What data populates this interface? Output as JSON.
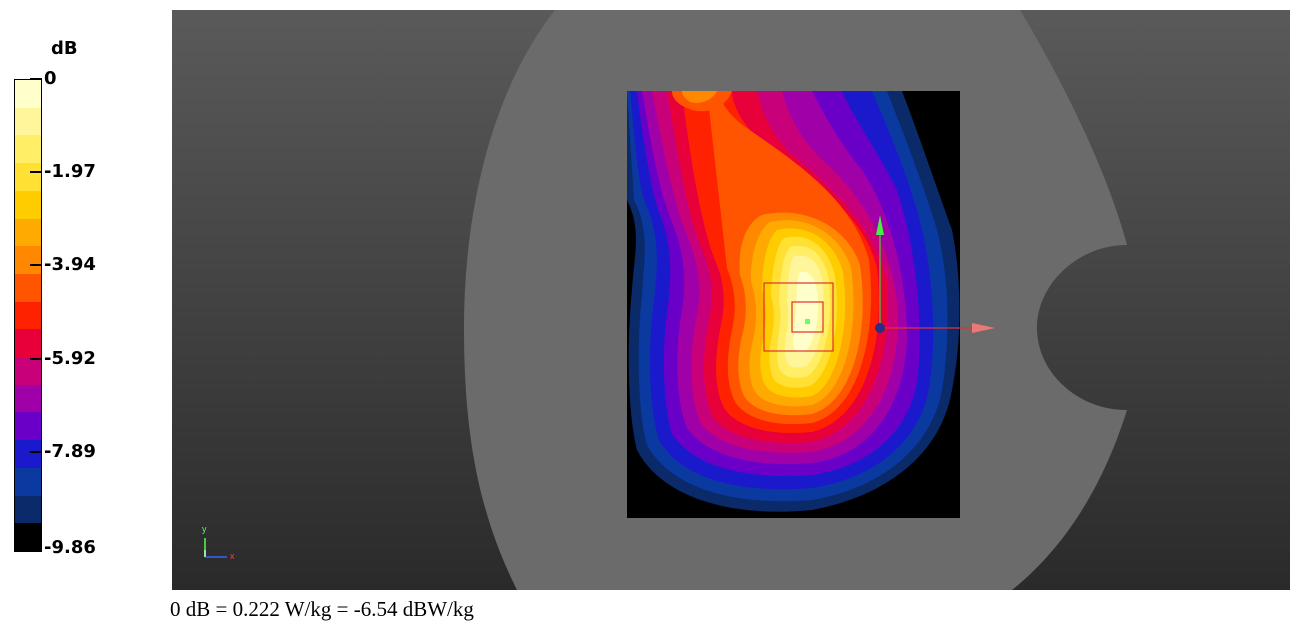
{
  "legend": {
    "unit": "dB",
    "ticks": [
      "0",
      "-1.97",
      "-3.94",
      "-5.92",
      "-7.89",
      "-9.86"
    ],
    "colors": [
      "#ffffcc",
      "#fff59a",
      "#ffee66",
      "#ffe033",
      "#ffcc00",
      "#ffaa00",
      "#ff8800",
      "#ff5500",
      "#ff2200",
      "#e8003a",
      "#c8007a",
      "#a000a8",
      "#6a00c8",
      "#1a1acc",
      "#0a3aa0",
      "#0a2a6a",
      "#000000"
    ]
  },
  "viewport": {
    "background_top": "#5a5a5a",
    "background_bottom": "#2a2a2a",
    "phantom_color": "#6b6b6b",
    "axis_triad": {
      "y_label": "y",
      "x_label": "x"
    }
  },
  "footer": {
    "text": "0 dB = 0.222 W/kg = -6.54 dBW/kg"
  }
}
